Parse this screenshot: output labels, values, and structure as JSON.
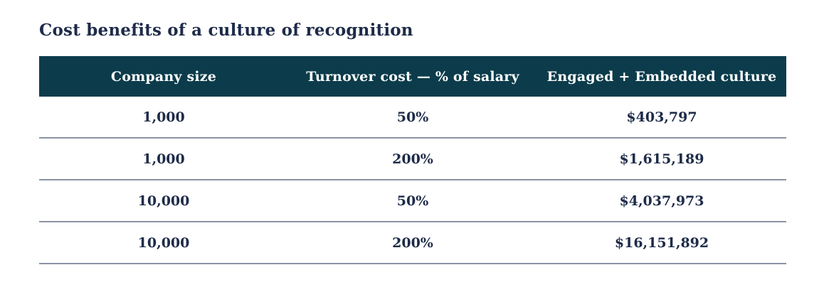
{
  "chart_data": {
    "type": "table",
    "title": "Cost benefits of a culture of recognition",
    "columns": [
      "Company size",
      "Turnover cost — % of salary",
      "Engaged + Embedded culture"
    ],
    "rows": [
      [
        "1,000",
        "50%",
        "$403,797"
      ],
      [
        "1,000",
        "200%",
        "$1,615,189"
      ],
      [
        "10,000",
        "50%",
        "$4,037,973"
      ],
      [
        "10,000",
        "200%",
        "$16,151,892"
      ]
    ],
    "layout_hints": {
      "header_style": "solid fill, white bold text, centered",
      "row_style": "centered bold values with thin bottom rule under every row",
      "column_alignment": [
        "center",
        "center",
        "center"
      ]
    }
  },
  "colors": {
    "header_bg": "#0c3c4b",
    "header_text": "#ffffff",
    "body_text": "#1e2b49",
    "row_border": "#8a92a4",
    "background": "#ffffff"
  }
}
